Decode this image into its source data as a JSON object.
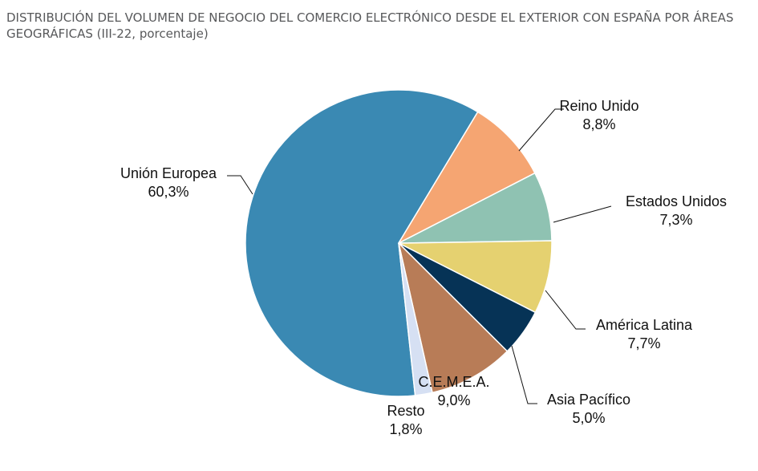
{
  "chart_data": {
    "type": "pie",
    "title": "DISTRIBUCIÓN DEL VOLUMEN DE NEGOCIO DEL COMERCIO ELECTRÓNICO DESDE EL EXTERIOR CON ESPAÑA POR ÁREAS",
    "subtitle": "GEOGRÁFICAS (III-22, porcentaje)",
    "legend": "none",
    "slices": [
      {
        "name": "Unión Europea",
        "value": 60.3,
        "label": "60,3%",
        "color": "#3a89b3"
      },
      {
        "name": "Reino Unido",
        "value": 8.8,
        "label": "8,8%",
        "color": "#f5a572"
      },
      {
        "name": "Estados Unidos",
        "value": 7.3,
        "label": "7,3%",
        "color": "#8fc2b2"
      },
      {
        "name": "América Latina",
        "value": 7.7,
        "label": "7,7%",
        "color": "#e5d170"
      },
      {
        "name": "Asia Pacífico",
        "value": 5.0,
        "label": "5,0%",
        "color": "#063356"
      },
      {
        "name": "C.E.M.E.A.",
        "value": 9.0,
        "label": "9,0%",
        "color": "#b87c57"
      },
      {
        "name": "Resto",
        "value": 1.8,
        "label": "1,8%",
        "color": "#d6e0f3"
      }
    ]
  }
}
